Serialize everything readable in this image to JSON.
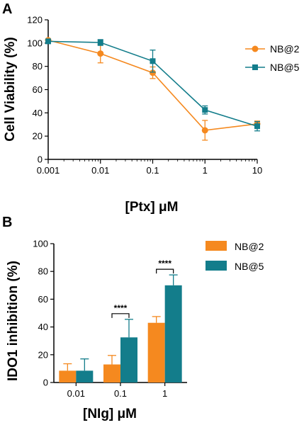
{
  "colors": {
    "orange": "#F5891F",
    "teal": "#137D8B",
    "axis": "#000000"
  },
  "chart_data": [
    {
      "panel": "A",
      "type": "line",
      "x_scale": "log",
      "x": [
        0.001,
        0.01,
        0.1,
        1,
        10
      ],
      "x_tick_labels": [
        "0.001",
        "0.01",
        "0.1",
        "1",
        "10"
      ],
      "xlim": [
        0.001,
        10
      ],
      "ylim": [
        0,
        120
      ],
      "y_ticks": [
        0,
        20,
        40,
        60,
        80,
        100,
        120
      ],
      "xlabel": "[Ptx] μM",
      "ylabel": "Cell Viability (%)",
      "legend_position": "right",
      "grid": false,
      "series": [
        {
          "name": "NB@2",
          "marker": "circle",
          "color": "#F5891F",
          "values": [
            102.5,
            91,
            74.5,
            25,
            30.5
          ],
          "errors": [
            0,
            8,
            5,
            8.5,
            2.5
          ]
        },
        {
          "name": "NB@5",
          "marker": "square",
          "color": "#137D8B",
          "values": [
            101.5,
            100.5,
            84.5,
            42.5,
            28.5
          ],
          "errors": [
            0,
            2.5,
            9.5,
            3.5,
            4
          ]
        }
      ]
    },
    {
      "panel": "B",
      "type": "bar",
      "categories": [
        "0.01",
        "0.1",
        "1"
      ],
      "ylim": [
        0,
        100
      ],
      "y_ticks": [
        0,
        20,
        40,
        60,
        80,
        100
      ],
      "xlabel": "[NIg] μM",
      "ylabel": "IDO1 inhibition (%)",
      "legend_position": "top-right",
      "grid": false,
      "series": [
        {
          "name": "NB@2",
          "color": "#F5891F",
          "values": [
            8.5,
            13,
            43
          ],
          "errors": [
            5,
            6.5,
            4.5
          ]
        },
        {
          "name": "NB@5",
          "color": "#137D8B",
          "values": [
            8.5,
            32.5,
            70
          ],
          "errors": [
            8.5,
            13,
            7.5
          ]
        }
      ],
      "annotations": [
        {
          "text": "****",
          "category_index": 1
        },
        {
          "text": "****",
          "category_index": 2
        }
      ]
    }
  ]
}
